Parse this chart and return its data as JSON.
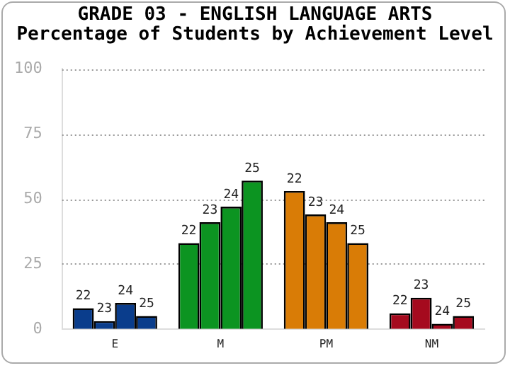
{
  "chart_data": {
    "type": "bar",
    "title": "GRADE 03 - ENGLISH LANGUAGE ARTS",
    "subtitle": "Percentage of Students by Achievement Level",
    "categories": [
      "E",
      "M",
      "PM",
      "NM"
    ],
    "series": [
      {
        "name": "22",
        "colors": [
          "#0a3d8c",
          "#0c9421",
          "#d97c06",
          "#a50a1e"
        ],
        "values": [
          8,
          33,
          53,
          6
        ]
      },
      {
        "name": "23",
        "colors": [
          "#0a3d8c",
          "#0c9421",
          "#d97c06",
          "#a50a1e"
        ],
        "values": [
          3,
          41,
          44,
          12
        ]
      },
      {
        "name": "24",
        "colors": [
          "#0a3d8c",
          "#0c9421",
          "#d97c06",
          "#a50a1e"
        ],
        "values": [
          10,
          47,
          41,
          2
        ]
      },
      {
        "name": "25",
        "colors": [
          "#0a3d8c",
          "#0c9421",
          "#d97c06",
          "#a50a1e"
        ],
        "values": [
          5,
          57,
          33,
          5
        ]
      }
    ],
    "ylim": [
      0,
      100
    ],
    "yticks": [
      0,
      25,
      50,
      75,
      100
    ],
    "grid": "y",
    "legend": false
  }
}
